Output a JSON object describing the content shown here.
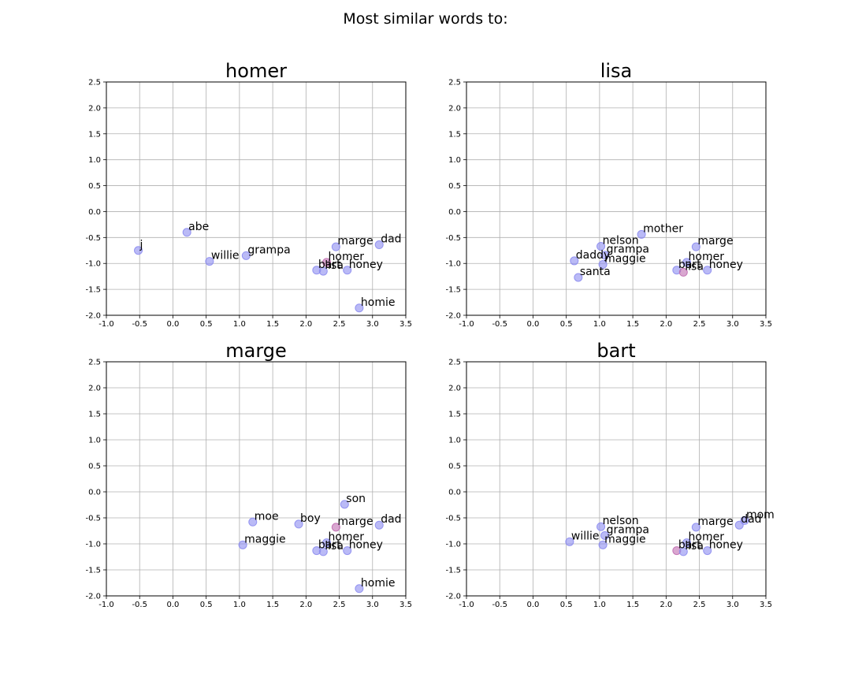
{
  "figure": {
    "suptitle": "Most similar words to:"
  },
  "style": {
    "point_color": "#8c8cf0",
    "highlight_color": "#c06cb0",
    "grid_color": "#b0b0b0"
  },
  "chart_data": [
    {
      "type": "scatter",
      "title": "homer",
      "xlim": [
        -1.0,
        3.5
      ],
      "ylim": [
        -2.0,
        2.5
      ],
      "xticks": [
        -1.0,
        -0.5,
        0.0,
        0.5,
        1.0,
        1.5,
        2.0,
        2.5,
        3.0,
        3.5
      ],
      "yticks": [
        -2.0,
        -1.5,
        -1.0,
        -0.5,
        0.0,
        0.5,
        1.0,
        1.5,
        2.0,
        2.5
      ],
      "grid": true,
      "highlight": "homer",
      "points": [
        {
          "label": "abe",
          "x": 0.21,
          "y": -0.4
        },
        {
          "label": "j",
          "x": -0.52,
          "y": -0.75
        },
        {
          "label": "willie",
          "x": 0.55,
          "y": -0.96
        },
        {
          "label": "grampa",
          "x": 1.1,
          "y": -0.85
        },
        {
          "label": "marge",
          "x": 2.45,
          "y": -0.68
        },
        {
          "label": "dad",
          "x": 3.1,
          "y": -0.64
        },
        {
          "label": "homer",
          "x": 2.31,
          "y": -0.98
        },
        {
          "label": "bart",
          "x": 2.16,
          "y": -1.13
        },
        {
          "label": "lisa",
          "x": 2.26,
          "y": -1.15
        },
        {
          "label": "honey",
          "x": 2.62,
          "y": -1.13
        },
        {
          "label": "homie",
          "x": 2.8,
          "y": -1.86
        }
      ]
    },
    {
      "type": "scatter",
      "title": "lisa",
      "xlim": [
        -1.0,
        3.5
      ],
      "ylim": [
        -2.0,
        2.5
      ],
      "xticks": [
        -1.0,
        -0.5,
        0.0,
        0.5,
        1.0,
        1.5,
        2.0,
        2.5,
        3.0,
        3.5
      ],
      "yticks": [
        -2.0,
        -1.5,
        -1.0,
        -0.5,
        0.0,
        0.5,
        1.0,
        1.5,
        2.0,
        2.5
      ],
      "grid": true,
      "highlight": "lisa",
      "points": [
        {
          "label": "mother",
          "x": 1.63,
          "y": -0.44
        },
        {
          "label": "nelson",
          "x": 1.02,
          "y": -0.67
        },
        {
          "label": "marge",
          "x": 2.45,
          "y": -0.68
        },
        {
          "label": "grampa",
          "x": 1.08,
          "y": -0.84
        },
        {
          "label": "daddy",
          "x": 0.62,
          "y": -0.95
        },
        {
          "label": "maggie",
          "x": 1.05,
          "y": -1.02
        },
        {
          "label": "homer",
          "x": 2.31,
          "y": -0.98
        },
        {
          "label": "bart",
          "x": 2.16,
          "y": -1.13
        },
        {
          "label": "lisa",
          "x": 2.26,
          "y": -1.17
        },
        {
          "label": "honey",
          "x": 2.62,
          "y": -1.13
        },
        {
          "label": "santa",
          "x": 0.68,
          "y": -1.27
        }
      ]
    },
    {
      "type": "scatter",
      "title": "marge",
      "xlim": [
        -1.0,
        3.5
      ],
      "ylim": [
        -2.0,
        2.5
      ],
      "xticks": [
        -1.0,
        -0.5,
        0.0,
        0.5,
        1.0,
        1.5,
        2.0,
        2.5,
        3.0,
        3.5
      ],
      "yticks": [
        -2.0,
        -1.5,
        -1.0,
        -0.5,
        0.0,
        0.5,
        1.0,
        1.5,
        2.0,
        2.5
      ],
      "grid": true,
      "highlight": "marge",
      "points": [
        {
          "label": "son",
          "x": 2.58,
          "y": -0.24
        },
        {
          "label": "moe",
          "x": 1.2,
          "y": -0.58
        },
        {
          "label": "boy",
          "x": 1.89,
          "y": -0.62
        },
        {
          "label": "marge",
          "x": 2.45,
          "y": -0.68
        },
        {
          "label": "dad",
          "x": 3.1,
          "y": -0.64
        },
        {
          "label": "maggie",
          "x": 1.05,
          "y": -1.02
        },
        {
          "label": "homer",
          "x": 2.31,
          "y": -0.98
        },
        {
          "label": "bart",
          "x": 2.16,
          "y": -1.13
        },
        {
          "label": "lisa",
          "x": 2.26,
          "y": -1.15
        },
        {
          "label": "honey",
          "x": 2.62,
          "y": -1.13
        },
        {
          "label": "homie",
          "x": 2.8,
          "y": -1.86
        }
      ]
    },
    {
      "type": "scatter",
      "title": "bart",
      "xlim": [
        -1.0,
        3.5
      ],
      "ylim": [
        -2.0,
        2.5
      ],
      "xticks": [
        -1.0,
        -0.5,
        0.0,
        0.5,
        1.0,
        1.5,
        2.0,
        2.5,
        3.0,
        3.5
      ],
      "yticks": [
        -2.0,
        -1.5,
        -1.0,
        -0.5,
        0.0,
        0.5,
        1.0,
        1.5,
        2.0,
        2.5
      ],
      "grid": true,
      "highlight": "bart",
      "points": [
        {
          "label": "mom",
          "x": 3.18,
          "y": -0.55
        },
        {
          "label": "dad",
          "x": 3.1,
          "y": -0.64
        },
        {
          "label": "nelson",
          "x": 1.02,
          "y": -0.67
        },
        {
          "label": "marge",
          "x": 2.45,
          "y": -0.68
        },
        {
          "label": "grampa",
          "x": 1.08,
          "y": -0.84
        },
        {
          "label": "willie",
          "x": 0.55,
          "y": -0.96
        },
        {
          "label": "maggie",
          "x": 1.05,
          "y": -1.02
        },
        {
          "label": "homer",
          "x": 2.31,
          "y": -0.98
        },
        {
          "label": "bart",
          "x": 2.16,
          "y": -1.13
        },
        {
          "label": "lisa",
          "x": 2.26,
          "y": -1.15
        },
        {
          "label": "honey",
          "x": 2.62,
          "y": -1.13
        }
      ]
    }
  ]
}
